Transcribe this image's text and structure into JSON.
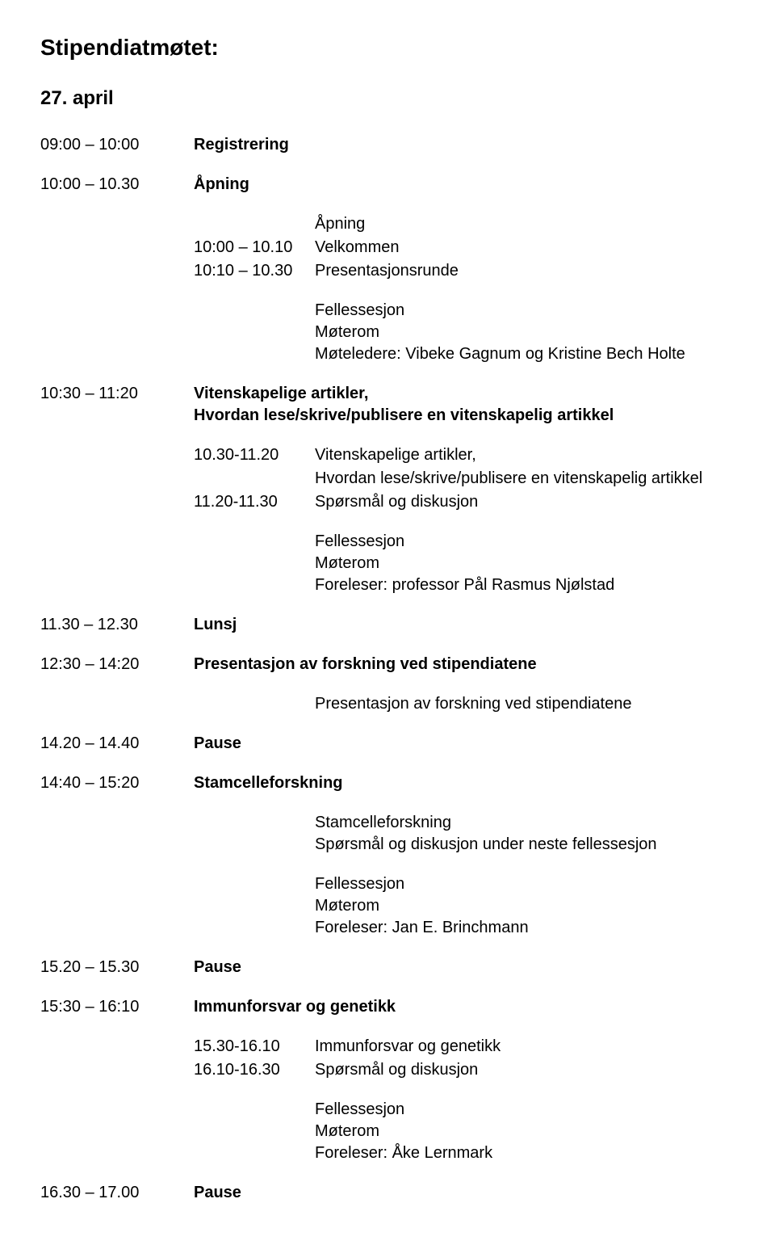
{
  "page_title": "Stipendiatmøtet:",
  "date_heading": "27. april",
  "rows": {
    "r1_time": "09:00 ",
    "r1_dash": " 10:00",
    "r1_label": "Registrering",
    "r2_time": "10:00 ",
    "r2_dash": " 10.30",
    "r2_label": "Åpning",
    "sub1_l1_t": "10:00 ",
    "sub1_l1_d": " 10.10",
    "sub1_l0": "Åpning",
    "sub1_l1": "Velkommen",
    "sub1_l2_t": "10:10 ",
    "sub1_l2_d": " 10.30",
    "sub1_l2": "Presentasjonsrunde",
    "meta1_a": "Fellessesjon",
    "meta1_b": "Møterom",
    "meta1_c": "Møteledere: Vibeke Gagnum og Kristine Bech Holte",
    "r3_time": "10:30 ",
    "r3_dash": " 11:20",
    "r3_label": "Vitenskapelige artikler,",
    "r3_label2": "Hvordan lese/skrive/publisere en vitenskapelig artikkel",
    "sub2_l1_t": "10.30-11.20",
    "sub2_l1_a": "Vitenskapelige artikler,",
    "sub2_l1_b": "Hvordan lese/skrive/publisere en vitenskapelig artikkel",
    "sub2_l2_t": "11.20-11.30",
    "sub2_l2": "Spørsmål og diskusjon",
    "meta2_a": "Fellessesjon",
    "meta2_b": "Møterom",
    "meta2_c": "Foreleser: professor Pål Rasmus Njølstad",
    "r4_time": "11.30 ",
    "r4_dash": " 12.30",
    "r4_label": "Lunsj",
    "r5_time": "12:30 ",
    "r5_dash": " 14:20",
    "r5_label": "Presentasjon av forskning ved stipendiatene",
    "meta3": "Presentasjon av forskning ved stipendiatene",
    "r6_time": "14.20 ",
    "r6_dash": " 14.40",
    "r6_label": "Pause",
    "r7_time": "14:40 ",
    "r7_dash": " 15:20",
    "r7_label": "Stamcelleforskning",
    "meta4_a": "Stamcelleforskning",
    "meta4_b": "Spørsmål og diskusjon under neste fellessesjon",
    "meta4_c": "Fellessesjon",
    "meta4_d": "Møterom",
    "meta4_e": "Foreleser: Jan E. Brinchmann",
    "r8_time": "15.20 ",
    "r8_dash": " 15.30",
    "r8_label": "Pause",
    "r9_time": "15:30 ",
    "r9_dash": " 16:10",
    "r9_label": "Immunforsvar og genetikk",
    "sub3_l1_t": "15.30-16.10",
    "sub3_l1": "Immunforsvar og genetikk",
    "sub3_l2_t": "16.10-16.30",
    "sub3_l2": "Spørsmål og diskusjon",
    "meta5_a": "Fellessesjon",
    "meta5_b": "Møterom",
    "meta5_c": "Foreleser: Åke Lernmark",
    "r10_time": "16.30 ",
    "r10_dash": " 17.00",
    "r10_label": "Pause"
  }
}
